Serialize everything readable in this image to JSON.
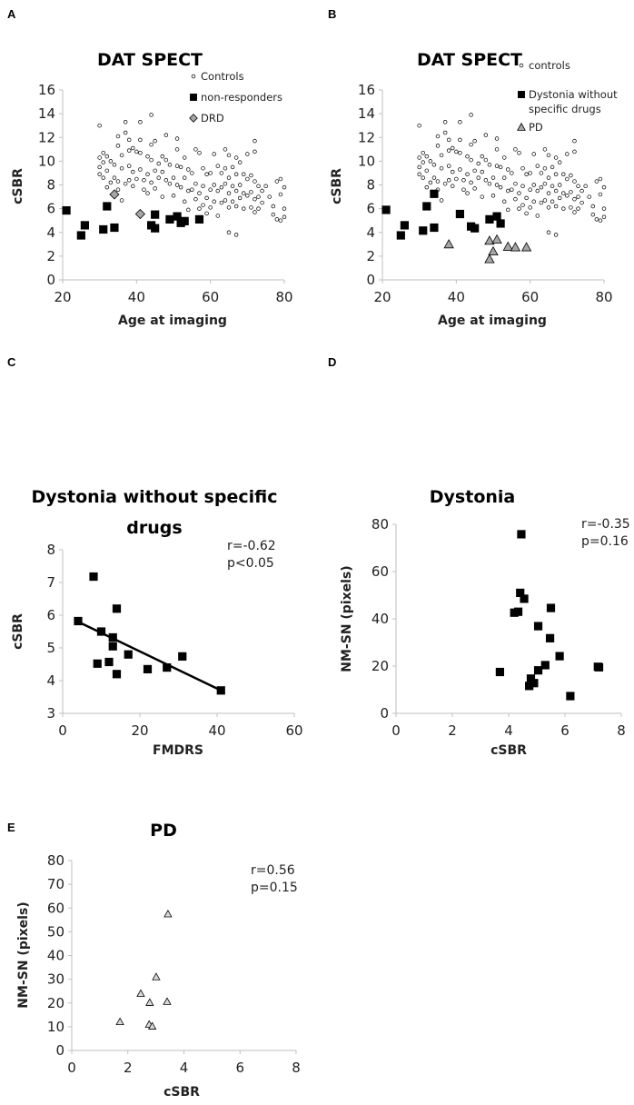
{
  "chart_data": [
    {
      "panel": "A",
      "type": "scatter",
      "title": [
        "DAT SPECT"
      ],
      "xlabel": "Age at imaging",
      "ylabel": "cSBR",
      "xlim": [
        20,
        80
      ],
      "ylim": [
        0,
        16
      ],
      "xticks": [
        "20",
        "40",
        "60",
        "80"
      ],
      "yticks": [
        "0",
        "2",
        "4",
        "6",
        "8",
        "10",
        "12",
        "14",
        "16"
      ],
      "grid": false,
      "legend": "top-right",
      "annotation": [],
      "series": [
        {
          "name": "Controls",
          "marker": "circle",
          "color": "#ffffff",
          "ref": "controls"
        },
        {
          "name": "non-responders",
          "marker": "square",
          "color": "#000000",
          "points": [
            [
              21,
              5.85
            ],
            [
              25,
              3.75
            ],
            [
              26,
              4.6
            ],
            [
              31,
              4.25
            ],
            [
              32,
              6.2
            ],
            [
              34,
              4.4
            ],
            [
              44,
              4.6
            ],
            [
              45,
              4.35
            ],
            [
              45,
              5.5
            ],
            [
              49,
              5.1
            ],
            [
              51,
              5.35
            ],
            [
              52,
              4.8
            ],
            [
              53,
              4.95
            ],
            [
              57,
              5.1
            ]
          ]
        },
        {
          "name": "DRD",
          "marker": "diamond",
          "color": "#a6a6a6",
          "points": [
            [
              34,
              7.2
            ],
            [
              41,
              5.55
            ]
          ]
        }
      ]
    },
    {
      "panel": "B",
      "type": "scatter",
      "title": [
        "DAT SPECT"
      ],
      "xlabel": "Age at imaging",
      "ylabel": "cSBR",
      "xlim": [
        20,
        80
      ],
      "ylim": [
        0,
        16
      ],
      "xticks": [
        "20",
        "40",
        "60",
        "80"
      ],
      "yticks": [
        "0",
        "2",
        "4",
        "6",
        "8",
        "10",
        "12",
        "14",
        "16"
      ],
      "grid": false,
      "legend": "top-right",
      "annotation": [],
      "series": [
        {
          "name": "controls",
          "marker": "circle",
          "color": "#ffffff",
          "ref": "controls"
        },
        {
          "name": "Dystonia without specific drugs",
          "legend_lines": [
            "Dystonia without",
            "specific drugs"
          ],
          "marker": "square",
          "color": "#000000",
          "points": [
            [
              21,
              5.9
            ],
            [
              25,
              3.75
            ],
            [
              26,
              4.6
            ],
            [
              31,
              4.15
            ],
            [
              32,
              6.2
            ],
            [
              34,
              7.25
            ],
            [
              34,
              4.4
            ],
            [
              41,
              5.55
            ],
            [
              44,
              4.5
            ],
            [
              45,
              4.35
            ],
            [
              49,
              5.1
            ],
            [
              51,
              5.35
            ],
            [
              52,
              4.75
            ]
          ]
        },
        {
          "name": "PD",
          "marker": "triangle",
          "color": "#a6a6a6",
          "points": [
            [
              38,
              3.0
            ],
            [
              49,
              3.3
            ],
            [
              51,
              3.4
            ],
            [
              50,
              2.4
            ],
            [
              49,
              1.75
            ],
            [
              54,
              2.8
            ],
            [
              56,
              2.75
            ],
            [
              59,
              2.75
            ]
          ]
        }
      ]
    },
    {
      "panel": "C",
      "type": "scatter",
      "title": [
        "Dystonia without specific",
        "drugs"
      ],
      "xlabel": "FMDRS",
      "ylabel": "cSBR",
      "xlim": [
        0,
        60
      ],
      "ylim": [
        3,
        8
      ],
      "xticks": [
        "0",
        "20",
        "40",
        "60"
      ],
      "yticks": [
        "3",
        "4",
        "5",
        "6",
        "7",
        "8"
      ],
      "grid": false,
      "legend": "none",
      "annotation": [
        "r=-0.62",
        "p<0.05"
      ],
      "trendline": [
        [
          4,
          5.8
        ],
        [
          41,
          3.7
        ]
      ],
      "series": [
        {
          "name": "Dystonia without specific drugs",
          "marker": "square",
          "color": "#000000",
          "points": [
            [
              4,
              5.82
            ],
            [
              8,
              7.18
            ],
            [
              9,
              4.52
            ],
            [
              10,
              5.5
            ],
            [
              12,
              4.57
            ],
            [
              13,
              5.32
            ],
            [
              13,
              5.05
            ],
            [
              14,
              6.2
            ],
            [
              14,
              4.2
            ],
            [
              17,
              4.8
            ],
            [
              22,
              4.35
            ],
            [
              27,
              4.4
            ],
            [
              31,
              4.74
            ],
            [
              41,
              3.7
            ]
          ]
        }
      ]
    },
    {
      "panel": "D",
      "type": "scatter",
      "title": [
        "Dystonia"
      ],
      "xlabel": "cSBR",
      "ylabel": "NM-SN (pixels)",
      "xlim": [
        0,
        8
      ],
      "ylim": [
        0,
        80
      ],
      "xticks": [
        "0",
        "2",
        "4",
        "6",
        "8"
      ],
      "yticks": [
        "0",
        "20",
        "40",
        "60",
        "80"
      ],
      "grid": false,
      "legend": "none",
      "annotation": [
        "r=-0.35",
        "p=0.16"
      ],
      "series": [
        {
          "name": "Dystonia",
          "marker": "square",
          "color": "#000000",
          "points": [
            [
              4.45,
              75.8
            ],
            [
              4.41,
              51
            ],
            [
              4.55,
              48.5
            ],
            [
              4.2,
              42.6
            ],
            [
              4.34,
              43
            ],
            [
              5.5,
              44.6
            ],
            [
              5.05,
              36.9
            ],
            [
              5.47,
              31.8
            ],
            [
              5.81,
              24.2
            ],
            [
              5.3,
              20.4
            ],
            [
              5.05,
              18.2
            ],
            [
              3.69,
              17.5
            ],
            [
              4.79,
              14.7
            ],
            [
              4.9,
              12.8
            ],
            [
              4.73,
              11.6
            ],
            [
              7.17,
              19.7
            ],
            [
              7.21,
              19.5
            ],
            [
              6.19,
              7.3
            ]
          ]
        }
      ]
    },
    {
      "panel": "E",
      "type": "scatter",
      "title": [
        "PD"
      ],
      "xlabel": "cSBR",
      "ylabel": "NM-SN (pixels)",
      "xlim": [
        0,
        8
      ],
      "ylim": [
        0,
        80
      ],
      "xticks": [
        "0",
        "2",
        "4",
        "6",
        "8"
      ],
      "yticks": [
        "0",
        "10",
        "20",
        "30",
        "40",
        "50",
        "60",
        "70",
        "80"
      ],
      "grid": false,
      "legend": "none",
      "annotation": [
        "r=0.56",
        "p=0.15"
      ],
      "series": [
        {
          "name": "PD",
          "marker": "triangle-open",
          "color": "#d9d9d9",
          "points": [
            [
              1.72,
              12.1
            ],
            [
              2.46,
              24
            ],
            [
              2.78,
              20.2
            ],
            [
              3.01,
              31
            ],
            [
              3.4,
              20.6
            ],
            [
              3.43,
              57.5
            ],
            [
              2.76,
              11
            ],
            [
              2.87,
              10.2
            ]
          ]
        }
      ]
    }
  ],
  "controls": [
    [
      30,
      13
    ],
    [
      30,
      10.3
    ],
    [
      30,
      9.5
    ],
    [
      30,
      8.9
    ],
    [
      31,
      10.7
    ],
    [
      31,
      9.9
    ],
    [
      31,
      8.6
    ],
    [
      32,
      10.4
    ],
    [
      32,
      9.2
    ],
    [
      32,
      7.8
    ],
    [
      33,
      10
    ],
    [
      33,
      8.2
    ],
    [
      34,
      9.7
    ],
    [
      34,
      8.6
    ],
    [
      35,
      12.1
    ],
    [
      35,
      11.3
    ],
    [
      35,
      8.3
    ],
    [
      35,
      7.6
    ],
    [
      36,
      10.5
    ],
    [
      36,
      9.4
    ],
    [
      36,
      6.7
    ],
    [
      37,
      13.3
    ],
    [
      37,
      12.4
    ],
    [
      37,
      8.1
    ],
    [
      38,
      11.8
    ],
    [
      38,
      10.9
    ],
    [
      38,
      9.6
    ],
    [
      38,
      8.4
    ],
    [
      39,
      11.1
    ],
    [
      39,
      9.1
    ],
    [
      39,
      7.9
    ],
    [
      40,
      10.8
    ],
    [
      40,
      8.5
    ],
    [
      41,
      13.3
    ],
    [
      41,
      11.8
    ],
    [
      41,
      10.7
    ],
    [
      41,
      9.3
    ],
    [
      42,
      8.4
    ],
    [
      42,
      7.6
    ],
    [
      43,
      10.4
    ],
    [
      43,
      8.9
    ],
    [
      43,
      7.3
    ],
    [
      44,
      13.9
    ],
    [
      44,
      11.4
    ],
    [
      44,
      10.1
    ],
    [
      44,
      8.2
    ],
    [
      45,
      11.7
    ],
    [
      45,
      9.2
    ],
    [
      45,
      7.7
    ],
    [
      46,
      9.8
    ],
    [
      46,
      8.6
    ],
    [
      47,
      10.4
    ],
    [
      47,
      9.1
    ],
    [
      47,
      7
    ],
    [
      48,
      12.2
    ],
    [
      48,
      10.1
    ],
    [
      48,
      8.4
    ],
    [
      49,
      9.7
    ],
    [
      49,
      8.1
    ],
    [
      50,
      8.6
    ],
    [
      50,
      7.1
    ],
    [
      51,
      11.9
    ],
    [
      51,
      11
    ],
    [
      51,
      9.6
    ],
    [
      51,
      8
    ],
    [
      52,
      9.5
    ],
    [
      52,
      7.8
    ],
    [
      53,
      10.3
    ],
    [
      53,
      8.6
    ],
    [
      53,
      6.6
    ],
    [
      54,
      9.3
    ],
    [
      54,
      7.5
    ],
    [
      54,
      5.9
    ],
    [
      55,
      9
    ],
    [
      55,
      7.6
    ],
    [
      56,
      11
    ],
    [
      56,
      8.1
    ],
    [
      56,
      6.8
    ],
    [
      57,
      10.7
    ],
    [
      57,
      7.3
    ],
    [
      57,
      6
    ],
    [
      58,
      9.4
    ],
    [
      58,
      7.9
    ],
    [
      58,
      6.3
    ],
    [
      59,
      8.9
    ],
    [
      59,
      6.9
    ],
    [
      59,
      5.6
    ],
    [
      60,
      9
    ],
    [
      60,
      7.6
    ],
    [
      60,
      6.1
    ],
    [
      61,
      10.6
    ],
    [
      61,
      8
    ],
    [
      61,
      6.6
    ],
    [
      62,
      9.6
    ],
    [
      62,
      7.5
    ],
    [
      62,
      5.4
    ],
    [
      63,
      9
    ],
    [
      63,
      7.8
    ],
    [
      63,
      6.5
    ],
    [
      64,
      11
    ],
    [
      64,
      9.4
    ],
    [
      64,
      8.1
    ],
    [
      64,
      6.7
    ],
    [
      65,
      10.5
    ],
    [
      65,
      8.6
    ],
    [
      65,
      7.3
    ],
    [
      65,
      6.1
    ],
    [
      65,
      4
    ],
    [
      66,
      9.5
    ],
    [
      66,
      7.9
    ],
    [
      66,
      6.6
    ],
    [
      67,
      10.3
    ],
    [
      67,
      8.9
    ],
    [
      67,
      7.5
    ],
    [
      67,
      6.2
    ],
    [
      67,
      3.8
    ],
    [
      68,
      9.9
    ],
    [
      68,
      8
    ],
    [
      68,
      6.9
    ],
    [
      69,
      8.9
    ],
    [
      69,
      7.3
    ],
    [
      69,
      6
    ],
    [
      70,
      10.6
    ],
    [
      70,
      8.5
    ],
    [
      70,
      7.1
    ],
    [
      71,
      8.8
    ],
    [
      71,
      7.4
    ],
    [
      71,
      6.1
    ],
    [
      72,
      11.7
    ],
    [
      72,
      10.8
    ],
    [
      72,
      8.3
    ],
    [
      72,
      6.8
    ],
    [
      72,
      5.7
    ],
    [
      73,
      7.9
    ],
    [
      73,
      7
    ],
    [
      73,
      6
    ],
    [
      74,
      7.5
    ],
    [
      74,
      6.5
    ],
    [
      75,
      7.9
    ],
    [
      76,
      7
    ],
    [
      77,
      6.2
    ],
    [
      77,
      5.5
    ],
    [
      78,
      8.3
    ],
    [
      78,
      5.1
    ],
    [
      79,
      8.5
    ],
    [
      79,
      7.2
    ],
    [
      79,
      5
    ],
    [
      80,
      7.8
    ],
    [
      80,
      6
    ],
    [
      80,
      5.3
    ]
  ]
}
